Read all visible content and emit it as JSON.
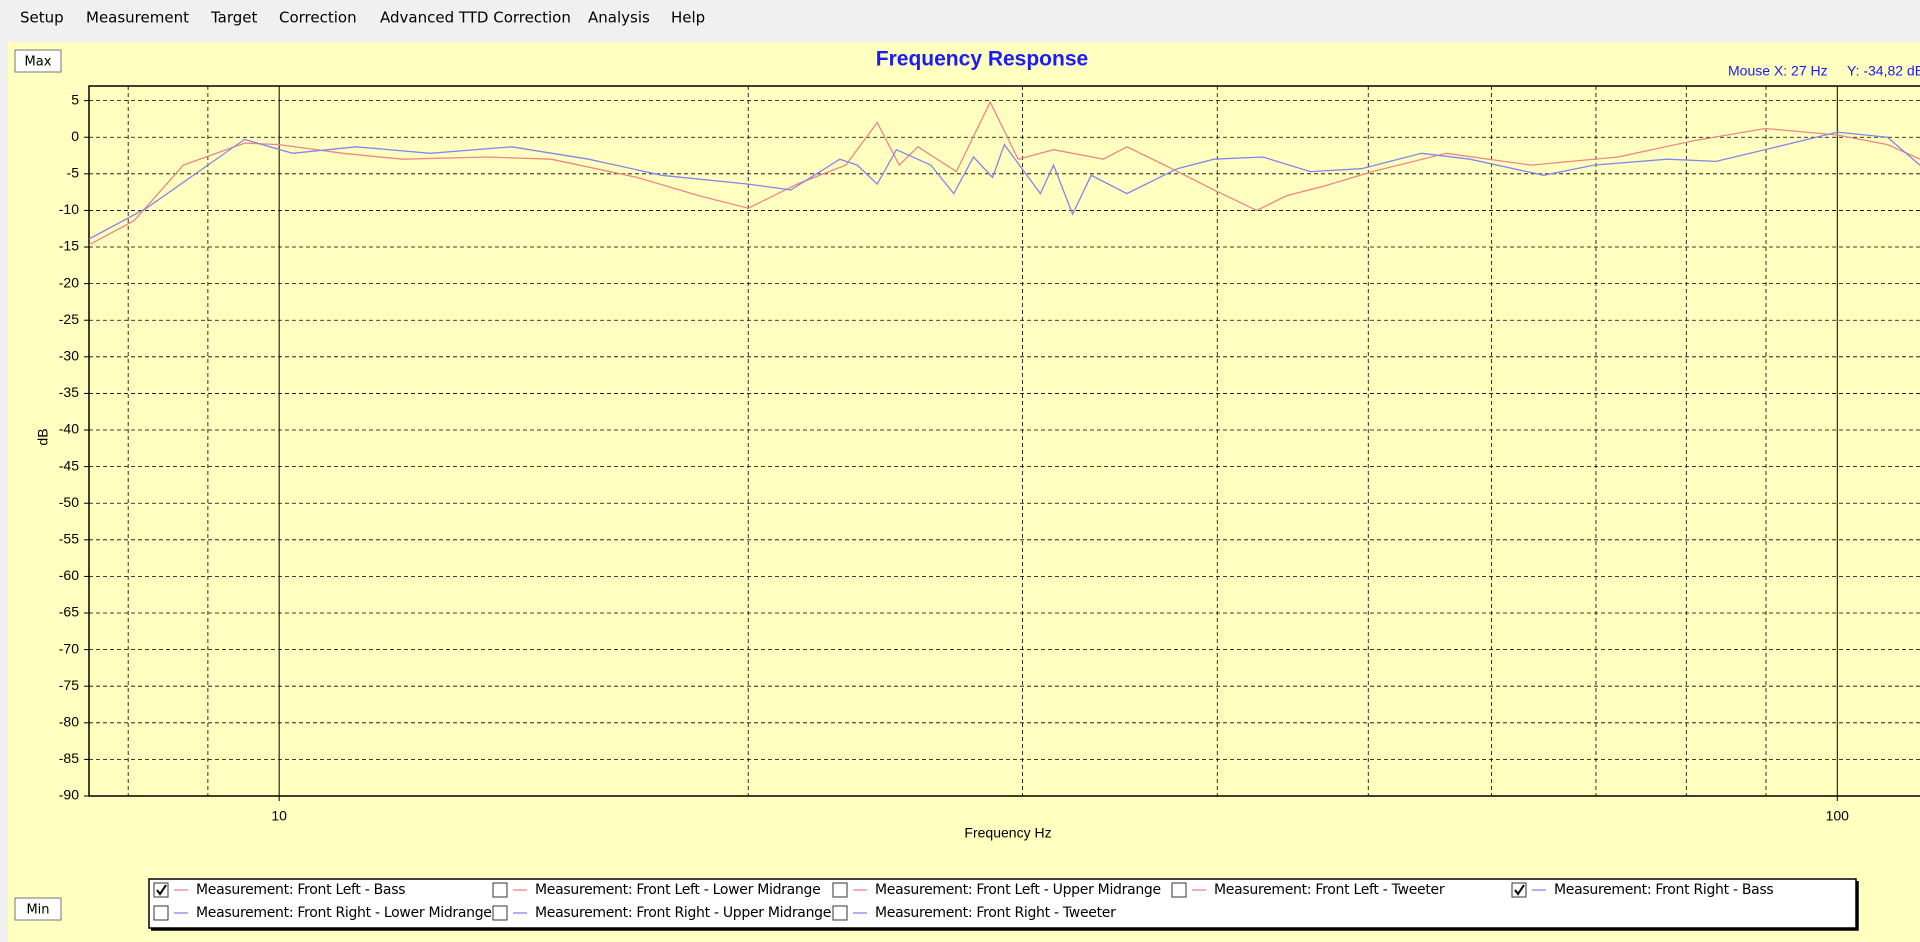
{
  "menu": [
    "Setup",
    "Measurement",
    "Target",
    "Correction",
    "Advanced TTD Correction",
    "Analysis",
    "Help"
  ],
  "buttons": {
    "max": "Max",
    "min": "Min"
  },
  "mouse_readout": {
    "x": "Mouse X: 27 Hz",
    "y": "Y: -34,82 dB"
  },
  "chart_data": {
    "type": "line",
    "title": "Frequency Response",
    "xlabel": "Frequency Hz",
    "ylabel": "dB",
    "xscale": "log",
    "xlim": [
      7.55,
      113
    ],
    "ylim": [
      -90,
      7
    ],
    "xticks": [
      10,
      100
    ],
    "xminor": [
      8,
      9,
      20,
      30,
      40,
      50,
      60,
      70,
      80,
      90
    ],
    "yticks": [
      5,
      0,
      -5,
      -10,
      -15,
      -20,
      -25,
      -30,
      -35,
      -40,
      -45,
      -50,
      -55,
      -60,
      -65,
      -70,
      -75,
      -80,
      -85,
      -90
    ],
    "grid": true,
    "series": [
      {
        "name": "Measurement: Front Left - Bass",
        "color": "#f08585",
        "checked": true,
        "x": [
          7.55,
          8.07,
          8.68,
          9.5,
          10,
          10.99,
          12.0,
          13.6,
          14.95,
          16.98,
          18.6,
          20,
          21.5,
          23.1,
          24.2,
          25.0,
          25.7,
          27.2,
          28.6,
          29.8,
          31.4,
          33.8,
          35.0,
          37.0,
          39.8,
          42.4,
          44.3,
          46.8,
          50.3,
          56.1,
          63.6,
          72.3,
          80.8,
          89.9,
          100,
          107.7,
          113
        ],
        "values": [
          -14.7,
          -11.4,
          -3.8,
          -0.8,
          -1,
          -2.2,
          -3,
          -2.7,
          -3,
          -5.5,
          -8,
          -9.7,
          -6.4,
          -3.8,
          2,
          -3.8,
          -1.3,
          -4.7,
          4.8,
          -3,
          -1.7,
          -3,
          -1.3,
          -3.8,
          -7.2,
          -10,
          -8,
          -6.7,
          -4.7,
          -2.2,
          -3.8,
          -2.7,
          -0.5,
          1.2,
          0.3,
          -1,
          -3
        ]
      },
      {
        "name": "Measurement: Front Left - Lower Midrange",
        "color": "#f08585",
        "checked": false
      },
      {
        "name": "Measurement: Front Left - Upper Midrange",
        "color": "#f08585",
        "checked": false
      },
      {
        "name": "Measurement: Front Left - Tweeter",
        "color": "#f08585",
        "checked": false
      },
      {
        "name": "Measurement: Front Right - Bass",
        "color": "#8585f0",
        "checked": true,
        "x": [
          7.55,
          8.22,
          9.0,
          9.5,
          10.2,
          11.2,
          12.5,
          14.1,
          15.8,
          17.6,
          20,
          21.3,
          22.9,
          23.5,
          24.2,
          24.9,
          26.2,
          27.1,
          27.9,
          28.7,
          29.2,
          30.8,
          31.4,
          32.3,
          33.2,
          35.0,
          37.7,
          39.8,
          42.8,
          45.9,
          49.5,
          54.1,
          58.1,
          64.8,
          69.8,
          77.8,
          83.6,
          91.5,
          100,
          107.7,
          113
        ],
        "values": [
          -13.9,
          -9.7,
          -3.8,
          -0.3,
          -2.2,
          -1.3,
          -2.2,
          -1.3,
          -3,
          -5.2,
          -6.4,
          -7.2,
          -3,
          -3.8,
          -6.4,
          -1.7,
          -3.8,
          -7.7,
          -2.7,
          -5.5,
          -1,
          -7.7,
          -3.8,
          -10.5,
          -5.2,
          -7.7,
          -4.3,
          -3,
          -2.7,
          -4.7,
          -4.3,
          -2.2,
          -3,
          -5.2,
          -3.8,
          -3,
          -3.3,
          -1.3,
          0.7,
          0,
          -3.8
        ]
      },
      {
        "name": "Measurement: Front Right - Lower Midrange",
        "color": "#8585f0",
        "checked": false
      },
      {
        "name": "Measurement: Front Right - Upper Midrange",
        "color": "#8585f0",
        "checked": false
      },
      {
        "name": "Measurement: Front Right - Tweeter",
        "color": "#8585f0",
        "checked": false
      }
    ]
  }
}
